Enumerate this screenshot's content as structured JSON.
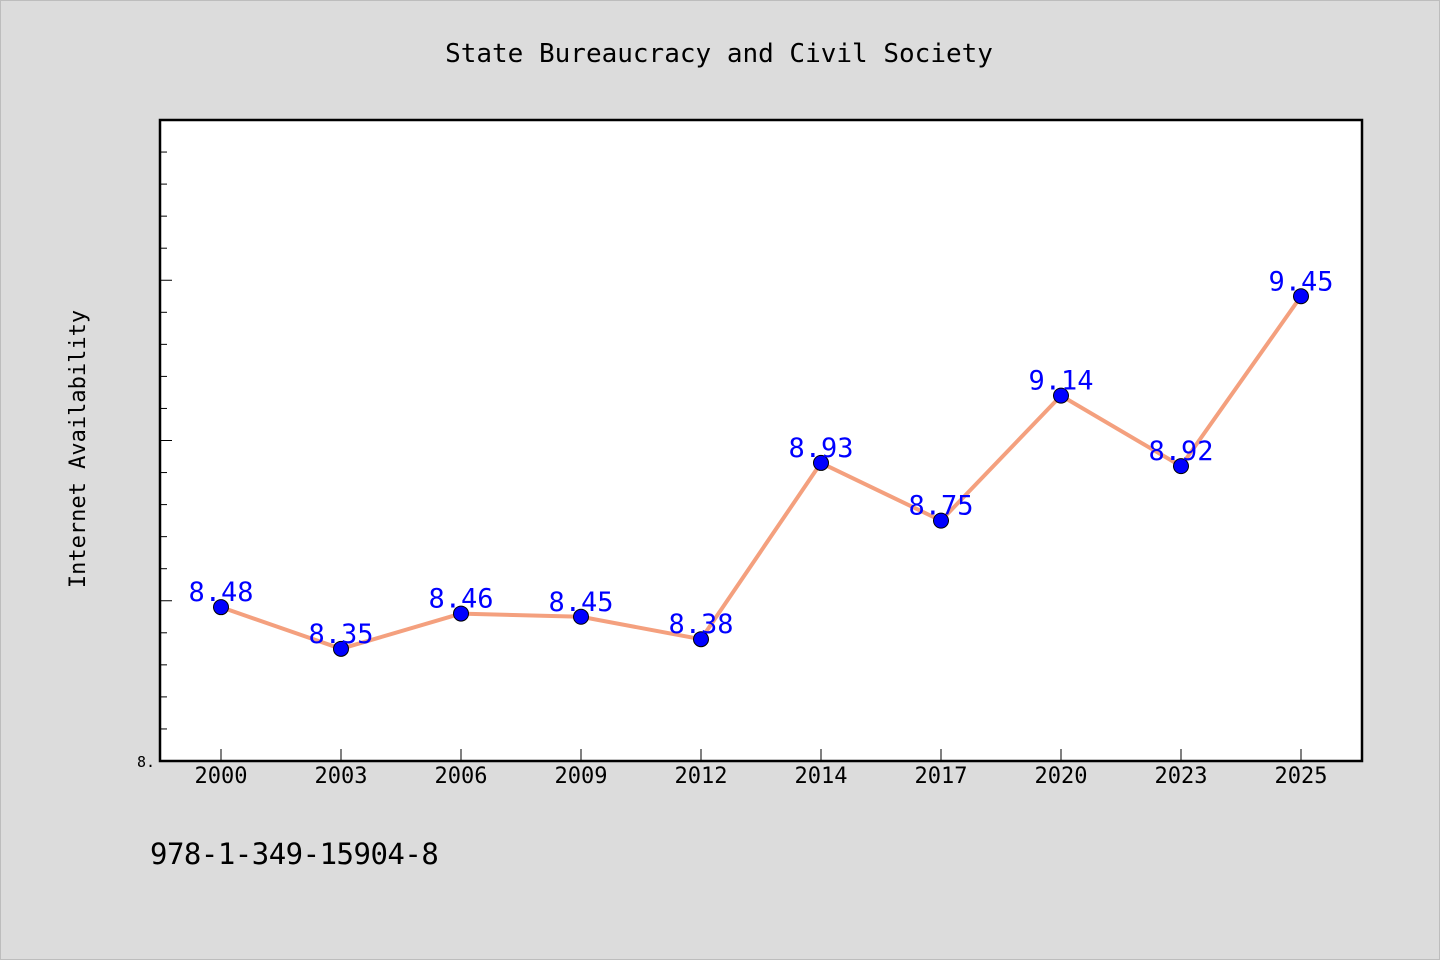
{
  "footer": {
    "isbn": "978-1-349-15904-8"
  },
  "colors": {
    "background": "#dcdcdc",
    "plot_background": "#ffffff",
    "line": "#f4a07e",
    "marker": "#0000ff",
    "data_label": "#0000ff"
  },
  "chart_data": {
    "type": "line",
    "title": "State Bureaucracy and Civil Society",
    "xlabel": "",
    "ylabel": "Internet Availability",
    "categories": [
      "2000",
      "2003",
      "2006",
      "2009",
      "2012",
      "2014",
      "2017",
      "2020",
      "2023",
      "2025"
    ],
    "series": [
      {
        "values": [
          8.48,
          8.35,
          8.46,
          8.45,
          8.38,
          8.93,
          8.75,
          9.14,
          8.92,
          9.45
        ]
      }
    ],
    "data_labels": [
      "8.48",
      "8.35",
      "8.46",
      "8.45",
      "8.38",
      "8.93",
      "8.75",
      "9.14",
      "8.92",
      "9.45"
    ],
    "ytick_labels": [
      "8."
    ],
    "ylim": [
      8.0,
      10.0
    ],
    "grid": false,
    "legend": "none"
  }
}
